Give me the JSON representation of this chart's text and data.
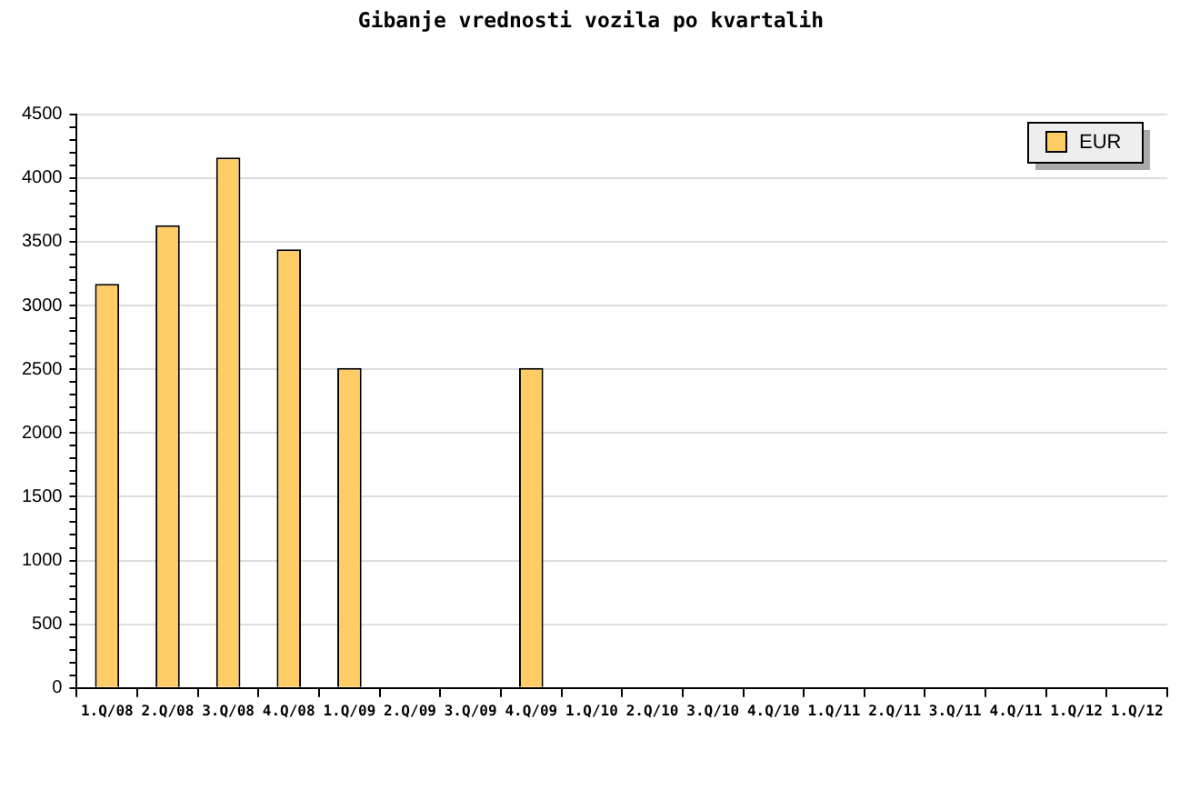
{
  "chart_data": {
    "type": "bar",
    "title": "Gibanje vrednosti vozila po kvartalih",
    "categories": [
      "1.Q/08",
      "2.Q/08",
      "3.Q/08",
      "4.Q/08",
      "1.Q/09",
      "2.Q/09",
      "3.Q/09",
      "4.Q/09",
      "1.Q/10",
      "2.Q/10",
      "3.Q/10",
      "4.Q/10",
      "1.Q/11",
      "2.Q/11",
      "3.Q/11",
      "4.Q/11",
      "1.Q/12",
      "1.Q/12"
    ],
    "series": [
      {
        "name": "EUR",
        "color": "#ffcc66",
        "values": [
          3170,
          3630,
          4160,
          3440,
          2510,
          null,
          null,
          2510,
          null,
          null,
          null,
          null,
          null,
          null,
          null,
          null,
          null,
          null
        ]
      }
    ],
    "ylim": [
      0,
      4500
    ],
    "yticks": [
      0,
      {
        "value": 100,
        "label": null
      },
      {
        "value": 200,
        "label": null
      },
      {
        "value": 300,
        "label": null
      },
      {
        "value": 400,
        "label": null
      },
      500,
      {
        "value": 600,
        "label": null
      },
      {
        "value": 700,
        "label": null
      },
      {
        "value": 800,
        "label": null
      },
      {
        "value": 900,
        "label": null
      },
      1000,
      {
        "value": 1100,
        "label": null
      },
      {
        "value": 1200,
        "label": null
      },
      {
        "value": 1300,
        "label": null
      },
      {
        "value": 1400,
        "label": null
      },
      1500,
      {
        "value": 1600,
        "label": null
      },
      {
        "value": 1700,
        "label": null
      },
      {
        "value": 1800,
        "label": null
      },
      {
        "value": 1900,
        "label": null
      },
      2000,
      {
        "value": 2100,
        "label": null
      },
      {
        "value": 2200,
        "label": null
      },
      {
        "value": 2300,
        "label": null
      },
      {
        "value": 2400,
        "label": null
      },
      2500,
      {
        "value": 2600,
        "label": null
      },
      {
        "value": 2700,
        "label": null
      },
      {
        "value": 2800,
        "label": null
      },
      {
        "value": 2900,
        "label": null
      },
      3000,
      {
        "value": 3100,
        "label": null
      },
      {
        "value": 3200,
        "label": null
      },
      {
        "value": 3300,
        "label": null
      },
      {
        "value": 3400,
        "label": null
      },
      3500,
      {
        "value": 3600,
        "label": null
      },
      {
        "value": 3700,
        "label": null
      },
      {
        "value": 3800,
        "label": null
      },
      {
        "value": 3900,
        "label": null
      },
      4000,
      {
        "value": 4100,
        "label": null
      },
      {
        "value": 4200,
        "label": null
      },
      {
        "value": 4300,
        "label": null
      },
      {
        "value": 4400,
        "label": null
      },
      4500
    ],
    "grid": "y",
    "legend": "top right"
  }
}
